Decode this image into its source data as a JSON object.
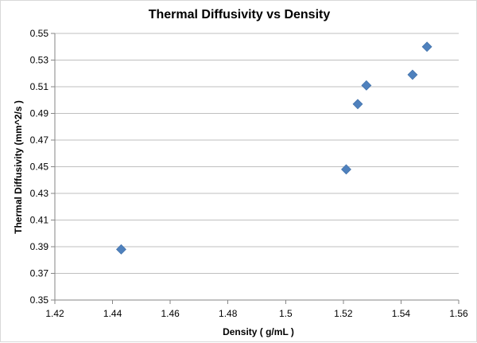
{
  "chart_data": {
    "type": "scatter",
    "title": "Thermal Diffusivity vs Density",
    "xlabel": "Density ( g/mL )",
    "ylabel": "Thermal Diffusivity (mm^2/s )",
    "xlim": [
      1.42,
      1.56
    ],
    "ylim": [
      0.35,
      0.55
    ],
    "x_ticks": [
      "1.42",
      "1.44",
      "1.46",
      "1.48",
      "1.5",
      "1.52",
      "1.54",
      "1.56"
    ],
    "y_ticks": [
      "0.35",
      "0.37",
      "0.39",
      "0.41",
      "0.43",
      "0.45",
      "0.47",
      "0.49",
      "0.51",
      "0.53",
      "0.55"
    ],
    "grid": "horizontal",
    "legend": "none",
    "marker": "diamond",
    "series": [
      {
        "color": "#4f81bd",
        "points": [
          {
            "x": 1.443,
            "y": 0.388
          },
          {
            "x": 1.521,
            "y": 0.448
          },
          {
            "x": 1.525,
            "y": 0.497
          },
          {
            "x": 1.528,
            "y": 0.511
          },
          {
            "x": 1.544,
            "y": 0.519
          },
          {
            "x": 1.549,
            "y": 0.54
          }
        ]
      }
    ]
  }
}
